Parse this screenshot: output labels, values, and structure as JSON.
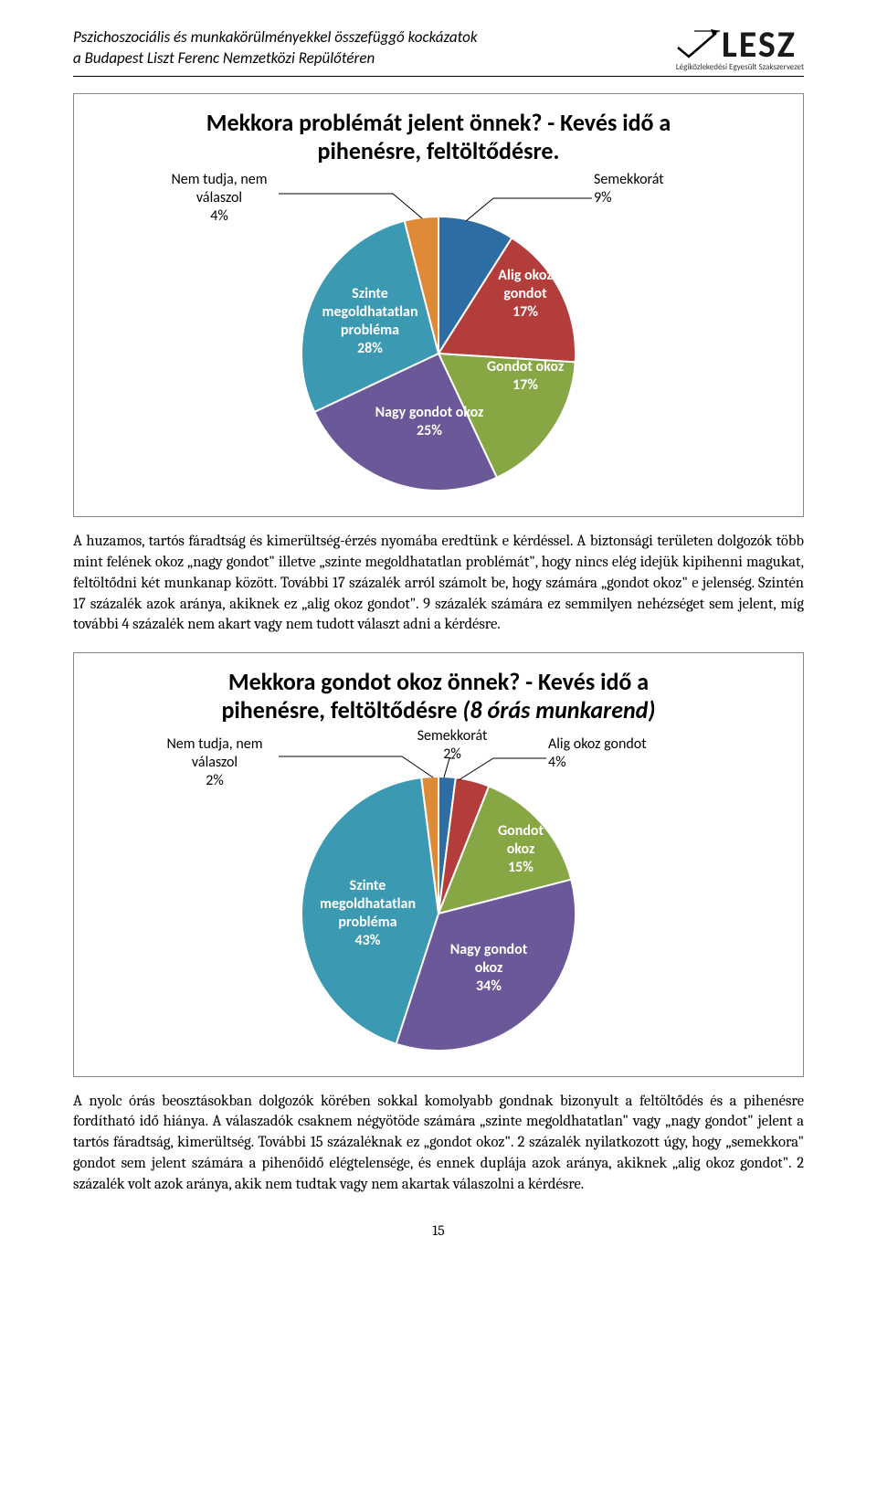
{
  "header": {
    "line1": "Pszichoszociális és munkakörülményekkel összefüggő kockázatok",
    "line2": "a Budapest Liszt Ferenc Nemzetközi Repülőtéren",
    "logo_text": "LESZ",
    "logo_sub": "Légiközlekedési Egyesült Szakszervezet"
  },
  "chart1": {
    "title_line1": "Mekkora problémát jelent önnek? - Kevés idő a",
    "title_line2": "pihenésre, feltöltődésre.",
    "type": "pie",
    "pie_radius": 150,
    "background_color": "#ffffff",
    "border_color": "#888888",
    "slices": [
      {
        "label": "Semekkorát",
        "pct_label": "9%",
        "value": 9,
        "color": "#2d6da3",
        "label_color": "#000000",
        "external": true
      },
      {
        "label": "Alig okoz gondot",
        "pct_label": "17%",
        "value": 17,
        "color": "#b33d3a",
        "label_color": "#ffffff",
        "external": false
      },
      {
        "label": "Gondot okoz",
        "pct_label": "17%",
        "value": 17,
        "color": "#87a644",
        "label_color": "#ffffff",
        "external": false
      },
      {
        "label": "Nagy gondot okoz",
        "pct_label": "25%",
        "value": 25,
        "color": "#6b5899",
        "label_color": "#ffffff",
        "external": false
      },
      {
        "label": "Szinte megoldhatatlan probléma",
        "pct_label": "28%",
        "value": 28,
        "color": "#3b99b1",
        "label_color": "#ffffff",
        "external": false
      },
      {
        "label": "Nem tudja, nem válaszol",
        "pct_label": "4%",
        "value": 4,
        "color": "#df8a36",
        "label_color": "#000000",
        "external": true
      }
    ]
  },
  "para1": "A huzamos, tartós fáradtság és kimerültség-érzés nyomába eredtünk e kérdéssel. A biztonsági területen dolgozók több mint felének okoz „nagy gondot\" illetve „szinte megoldhatatlan problémát\", hogy nincs elég idejük kipihenni magukat, feltöltődni két munkanap között. További 17 százalék arról számolt be, hogy számára „gondot okoz\" e jelenség. Szintén 17 százalék azok aránya, akiknek ez „alig okoz gondot\". 9 százalék számára ez semmilyen nehézséget sem jelent, míg további 4 százalék nem akart vagy nem tudott választ adni a kérdésre.",
  "chart2": {
    "title_line1": "Mekkora gondot okoz önnek? - Kevés idő a",
    "title_line2a": "pihenésre, feltöltődésre ",
    "title_line2b": "(8 órás munkarend)",
    "type": "pie",
    "pie_radius": 150,
    "background_color": "#ffffff",
    "border_color": "#888888",
    "slices": [
      {
        "label": "Semekkorát",
        "pct_label": "2%",
        "value": 2,
        "color": "#2d6da3",
        "label_color": "#000000",
        "external": true
      },
      {
        "label": "Alig okoz gondot",
        "pct_label": "4%",
        "value": 4,
        "color": "#b33d3a",
        "label_color": "#000000",
        "external": true
      },
      {
        "label": "Gondot okoz",
        "pct_label": "15%",
        "value": 15,
        "color": "#87a644",
        "label_color": "#ffffff",
        "external": false
      },
      {
        "label": "Nagy gondot okoz",
        "pct_label": "34%",
        "value": 34,
        "color": "#6b5899",
        "label_color": "#ffffff",
        "external": false
      },
      {
        "label": "Szinte megoldhatatlan probléma",
        "pct_label": "43%",
        "value": 43,
        "color": "#3b99b1",
        "label_color": "#ffffff",
        "external": false
      },
      {
        "label": "Nem tudja, nem válaszol",
        "pct_label": "2%",
        "value": 2,
        "color": "#df8a36",
        "label_color": "#000000",
        "external": true
      }
    ]
  },
  "para2": "A nyolc órás beosztásokban dolgozók körében sokkal komolyabb gondnak bizonyult a feltöltődés és a pihenésre fordítható idő hiánya. A válaszadók csaknem négyötöde számára „szinte megoldhatatlan\" vagy „nagy gondot\" jelent a tartós fáradtság, kimerültség. További 15 százaléknak ez „gondot okoz\". 2 százalék nyilatkozott úgy, hogy „semekkora\" gondot sem jelent számára a pihenőidő elégtelensége, és ennek duplája azok aránya, akiknek „alig okoz gondot\". 2 százalék volt azok aránya, akik nem tudtak vagy nem akartak válaszolni a kérdésre.",
  "page_number": "15"
}
